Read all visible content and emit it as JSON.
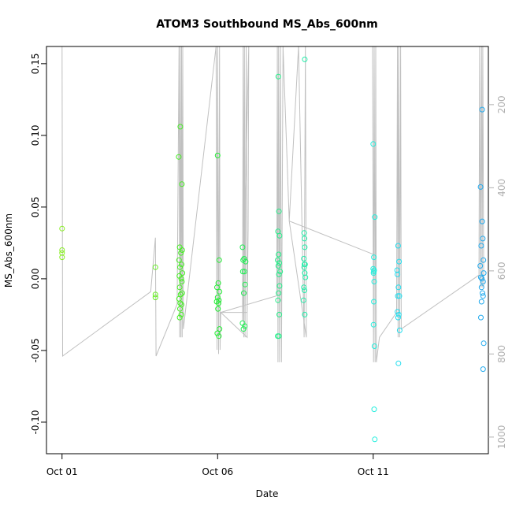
{
  "chart_data": {
    "type": "scatter",
    "title": "ATOM3 Southbound MS_Abs_600nm",
    "xlabel": "Date",
    "ylabel": "MS_Abs_600nm",
    "x_ticks": [
      "Oct 01",
      "Oct 06",
      "Oct 11"
    ],
    "x_tick_days": [
      1,
      6,
      11
    ],
    "xlim": [
      0.5,
      14.7
    ],
    "ylim": [
      -0.122,
      0.162
    ],
    "y_ticks": [
      -0.1,
      -0.05,
      0.0,
      0.05,
      0.1,
      0.15
    ],
    "y_tick_labels": [
      "-0.10",
      "-0.05",
      "0.00",
      "0.05",
      "0.10",
      "0.15"
    ],
    "right_axis": {
      "description": "depth (inverted)",
      "ticks": [
        200,
        400,
        600,
        800,
        1000
      ],
      "lim": [
        60,
        1040
      ],
      "color": "#b0b0b0"
    },
    "grid": false,
    "legend": "none",
    "line_color": "#c0c0c0",
    "points": [
      {
        "x": 1.0,
        "y": 0.035,
        "c": "#88ee22"
      },
      {
        "x": 1.0,
        "y": 0.02,
        "c": "#88ee22"
      },
      {
        "x": 1.0,
        "y": 0.018,
        "c": "#88ee22"
      },
      {
        "x": 1.0,
        "y": 0.015,
        "c": "#88ee22"
      },
      {
        "x": 4.0,
        "y": 0.008,
        "c": "#66ee22"
      },
      {
        "x": 4.0,
        "y": -0.011,
        "c": "#66ee22"
      },
      {
        "x": 4.0,
        "y": -0.013,
        "c": "#66ee22"
      },
      {
        "x": 4.75,
        "y": 0.085,
        "c": "#44ee22"
      },
      {
        "x": 4.8,
        "y": 0.106,
        "c": "#44ee22"
      },
      {
        "x": 4.85,
        "y": 0.066,
        "c": "#44ee22"
      },
      {
        "x": 4.78,
        "y": 0.022,
        "c": "#44ee22"
      },
      {
        "x": 4.82,
        "y": 0.018,
        "c": "#44ee22"
      },
      {
        "x": 4.86,
        "y": 0.02,
        "c": "#44ee22"
      },
      {
        "x": 4.76,
        "y": 0.013,
        "c": "#44ee22"
      },
      {
        "x": 4.84,
        "y": 0.01,
        "c": "#44ee22"
      },
      {
        "x": 4.79,
        "y": 0.008,
        "c": "#44ee22"
      },
      {
        "x": 4.87,
        "y": 0.004,
        "c": "#44ee22"
      },
      {
        "x": 4.77,
        "y": 0.002,
        "c": "#44ee22"
      },
      {
        "x": 4.83,
        "y": 0.0,
        "c": "#44ee22"
      },
      {
        "x": 4.85,
        "y": -0.002,
        "c": "#44ee22"
      },
      {
        "x": 4.78,
        "y": -0.006,
        "c": "#44ee22"
      },
      {
        "x": 4.86,
        "y": -0.01,
        "c": "#44ee22"
      },
      {
        "x": 4.81,
        "y": -0.011,
        "c": "#44ee22"
      },
      {
        "x": 4.76,
        "y": -0.014,
        "c": "#44ee22"
      },
      {
        "x": 4.8,
        "y": -0.017,
        "c": "#44ee22"
      },
      {
        "x": 4.84,
        "y": -0.018,
        "c": "#44ee22"
      },
      {
        "x": 4.79,
        "y": -0.021,
        "c": "#44ee22"
      },
      {
        "x": 4.83,
        "y": -0.025,
        "c": "#44ee22"
      },
      {
        "x": 4.78,
        "y": -0.027,
        "c": "#44ee22"
      },
      {
        "x": 6.0,
        "y": 0.086,
        "c": "#22ee33"
      },
      {
        "x": 6.05,
        "y": 0.013,
        "c": "#22ee33"
      },
      {
        "x": 6.02,
        "y": -0.003,
        "c": "#22ee33"
      },
      {
        "x": 5.98,
        "y": -0.006,
        "c": "#22ee33"
      },
      {
        "x": 6.06,
        "y": -0.009,
        "c": "#22ee33"
      },
      {
        "x": 6.0,
        "y": -0.013,
        "c": "#22ee33"
      },
      {
        "x": 6.04,
        "y": -0.015,
        "c": "#22ee33"
      },
      {
        "x": 5.97,
        "y": -0.016,
        "c": "#22ee33"
      },
      {
        "x": 6.03,
        "y": -0.017,
        "c": "#22ee33"
      },
      {
        "x": 6.01,
        "y": -0.021,
        "c": "#22ee33"
      },
      {
        "x": 6.06,
        "y": -0.035,
        "c": "#22ee33"
      },
      {
        "x": 5.99,
        "y": -0.038,
        "c": "#22ee33"
      },
      {
        "x": 6.04,
        "y": -0.04,
        "c": "#22ee33"
      },
      {
        "x": 6.8,
        "y": 0.022,
        "c": "#22ee55"
      },
      {
        "x": 6.85,
        "y": 0.014,
        "c": "#22ee55"
      },
      {
        "x": 6.9,
        "y": 0.012,
        "c": "#22ee55"
      },
      {
        "x": 6.82,
        "y": 0.013,
        "c": "#22ee55"
      },
      {
        "x": 6.86,
        "y": 0.005,
        "c": "#22ee55"
      },
      {
        "x": 6.81,
        "y": 0.005,
        "c": "#22ee55"
      },
      {
        "x": 6.88,
        "y": -0.004,
        "c": "#22ee55"
      },
      {
        "x": 6.84,
        "y": -0.01,
        "c": "#22ee55"
      },
      {
        "x": 6.8,
        "y": -0.031,
        "c": "#22ee55"
      },
      {
        "x": 6.83,
        "y": -0.035,
        "c": "#22ee55"
      },
      {
        "x": 6.87,
        "y": -0.033,
        "c": "#22ee55"
      },
      {
        "x": 7.95,
        "y": 0.141,
        "c": "#22ee88"
      },
      {
        "x": 7.97,
        "y": 0.047,
        "c": "#22ee88"
      },
      {
        "x": 7.94,
        "y": 0.033,
        "c": "#22ee88"
      },
      {
        "x": 7.99,
        "y": 0.03,
        "c": "#22ee88"
      },
      {
        "x": 7.96,
        "y": 0.017,
        "c": "#22ee88"
      },
      {
        "x": 7.93,
        "y": 0.013,
        "c": "#22ee88"
      },
      {
        "x": 7.98,
        "y": 0.011,
        "c": "#22ee88"
      },
      {
        "x": 7.95,
        "y": 0.009,
        "c": "#22ee88"
      },
      {
        "x": 8.01,
        "y": 0.005,
        "c": "#22ee88"
      },
      {
        "x": 7.97,
        "y": 0.003,
        "c": "#22ee88"
      },
      {
        "x": 7.99,
        "y": -0.005,
        "c": "#22ee88"
      },
      {
        "x": 7.96,
        "y": -0.01,
        "c": "#22ee88"
      },
      {
        "x": 7.94,
        "y": -0.015,
        "c": "#22ee88"
      },
      {
        "x": 7.98,
        "y": -0.025,
        "c": "#22ee88"
      },
      {
        "x": 7.93,
        "y": -0.04,
        "c": "#22ee88"
      },
      {
        "x": 7.97,
        "y": -0.04,
        "c": "#22ee88"
      },
      {
        "x": 8.8,
        "y": 0.153,
        "c": "#22eeaa"
      },
      {
        "x": 8.78,
        "y": 0.032,
        "c": "#22eeaa"
      },
      {
        "x": 8.79,
        "y": 0.028,
        "c": "#22eeaa"
      },
      {
        "x": 8.8,
        "y": 0.022,
        "c": "#22eeaa"
      },
      {
        "x": 8.77,
        "y": 0.014,
        "c": "#22eeaa"
      },
      {
        "x": 8.79,
        "y": 0.01,
        "c": "#22eeaa"
      },
      {
        "x": 8.81,
        "y": 0.01,
        "c": "#22eeaa"
      },
      {
        "x": 8.78,
        "y": 0.008,
        "c": "#22eeaa"
      },
      {
        "x": 8.8,
        "y": 0.004,
        "c": "#22eeaa"
      },
      {
        "x": 8.82,
        "y": 0.001,
        "c": "#22eeaa"
      },
      {
        "x": 8.77,
        "y": -0.006,
        "c": "#22eeaa"
      },
      {
        "x": 8.79,
        "y": -0.008,
        "c": "#22eeaa"
      },
      {
        "x": 8.76,
        "y": -0.015,
        "c": "#22eeaa"
      },
      {
        "x": 8.8,
        "y": -0.025,
        "c": "#22eeaa"
      },
      {
        "x": 11.0,
        "y": 0.094,
        "c": "#22eedd"
      },
      {
        "x": 11.05,
        "y": 0.043,
        "c": "#22eedd"
      },
      {
        "x": 11.02,
        "y": 0.015,
        "c": "#22eedd"
      },
      {
        "x": 11.0,
        "y": 0.007,
        "c": "#22eedd"
      },
      {
        "x": 11.03,
        "y": 0.006,
        "c": "#22eedd"
      },
      {
        "x": 11.01,
        "y": 0.004,
        "c": "#22eedd"
      },
      {
        "x": 11.02,
        "y": 0.005,
        "c": "#22eedd"
      },
      {
        "x": 11.03,
        "y": -0.002,
        "c": "#22eedd"
      },
      {
        "x": 11.02,
        "y": -0.016,
        "c": "#22eedd"
      },
      {
        "x": 11.01,
        "y": -0.032,
        "c": "#22eedd"
      },
      {
        "x": 11.04,
        "y": -0.047,
        "c": "#22eedd"
      },
      {
        "x": 11.03,
        "y": -0.091,
        "c": "#22eedd"
      },
      {
        "x": 11.05,
        "y": -0.112,
        "c": "#22eedd"
      },
      {
        "x": 11.8,
        "y": 0.023,
        "c": "#22ddee"
      },
      {
        "x": 11.83,
        "y": 0.012,
        "c": "#22ddee"
      },
      {
        "x": 11.77,
        "y": 0.006,
        "c": "#22ddee"
      },
      {
        "x": 11.78,
        "y": 0.003,
        "c": "#22ddee"
      },
      {
        "x": 11.81,
        "y": -0.006,
        "c": "#22ddee"
      },
      {
        "x": 11.79,
        "y": -0.012,
        "c": "#22ddee"
      },
      {
        "x": 11.84,
        "y": -0.012,
        "c": "#22ddee"
      },
      {
        "x": 11.78,
        "y": -0.023,
        "c": "#22ddee"
      },
      {
        "x": 11.82,
        "y": -0.025,
        "c": "#22ddee"
      },
      {
        "x": 11.8,
        "y": -0.027,
        "c": "#22ddee"
      },
      {
        "x": 11.85,
        "y": -0.036,
        "c": "#22ddee"
      },
      {
        "x": 11.81,
        "y": -0.059,
        "c": "#22ddee"
      },
      {
        "x": 14.5,
        "y": 0.118,
        "c": "#22aaee"
      },
      {
        "x": 14.45,
        "y": 0.064,
        "c": "#22aaee"
      },
      {
        "x": 14.5,
        "y": 0.04,
        "c": "#22aaee"
      },
      {
        "x": 14.52,
        "y": 0.028,
        "c": "#22aaee"
      },
      {
        "x": 14.47,
        "y": 0.023,
        "c": "#22aaee"
      },
      {
        "x": 14.54,
        "y": 0.013,
        "c": "#22aaee"
      },
      {
        "x": 14.44,
        "y": 0.009,
        "c": "#22aaee"
      },
      {
        "x": 14.55,
        "y": 0.004,
        "c": "#22aaee"
      },
      {
        "x": 14.46,
        "y": 0.001,
        "c": "#22aaee"
      },
      {
        "x": 14.49,
        "y": 0.0,
        "c": "#22aaee"
      },
      {
        "x": 14.53,
        "y": -0.002,
        "c": "#22aaee"
      },
      {
        "x": 14.48,
        "y": -0.006,
        "c": "#22aaee"
      },
      {
        "x": 14.51,
        "y": -0.01,
        "c": "#22aaee"
      },
      {
        "x": 14.53,
        "y": -0.012,
        "c": "#22aaee"
      },
      {
        "x": 14.48,
        "y": -0.016,
        "c": "#22aaee"
      },
      {
        "x": 14.46,
        "y": -0.027,
        "c": "#22aaee"
      },
      {
        "x": 14.55,
        "y": -0.045,
        "c": "#22aaee"
      },
      {
        "x": 14.53,
        "y": -0.063,
        "c": "#22aaee"
      }
    ],
    "depth_track": [
      [
        1.0,
        60
      ],
      [
        1.02,
        805
      ],
      [
        3.85,
        650
      ],
      [
        4.0,
        520
      ],
      [
        4.02,
        805
      ],
      [
        4.7,
        680
      ],
      [
        4.76,
        60
      ],
      [
        4.78,
        760
      ],
      [
        4.8,
        60
      ],
      [
        4.82,
        760
      ],
      [
        4.84,
        60
      ],
      [
        4.86,
        760
      ],
      [
        4.88,
        60
      ],
      [
        4.9,
        740
      ],
      [
        5.95,
        60
      ],
      [
        5.98,
        790
      ],
      [
        6.0,
        60
      ],
      [
        6.03,
        800
      ],
      [
        6.06,
        60
      ],
      [
        6.08,
        790
      ],
      [
        6.1,
        700
      ],
      [
        6.95,
        700
      ],
      [
        6.98,
        500
      ],
      [
        7.0,
        60
      ],
      [
        6.8,
        720
      ],
      [
        6.82,
        60
      ],
      [
        6.84,
        760
      ],
      [
        6.86,
        60
      ],
      [
        6.88,
        760
      ],
      [
        6.92,
        60
      ],
      [
        6.95,
        760
      ],
      [
        6.1,
        700
      ],
      [
        7.9,
        660
      ],
      [
        7.92,
        60
      ],
      [
        7.94,
        820
      ],
      [
        7.96,
        60
      ],
      [
        7.99,
        820
      ],
      [
        8.02,
        60
      ],
      [
        8.05,
        820
      ],
      [
        8.1,
        60
      ],
      [
        8.3,
        480
      ],
      [
        8.6,
        60
      ],
      [
        8.78,
        760
      ],
      [
        8.82,
        60
      ],
      [
        8.85,
        760
      ],
      [
        8.3,
        480
      ],
      [
        11.0,
        560
      ],
      [
        10.98,
        60
      ],
      [
        11.01,
        820
      ],
      [
        11.03,
        60
      ],
      [
        11.06,
        820
      ],
      [
        11.08,
        60
      ],
      [
        11.1,
        820
      ],
      [
        11.2,
        760
      ],
      [
        11.75,
        700
      ],
      [
        11.78,
        60
      ],
      [
        11.8,
        760
      ],
      [
        11.82,
        60
      ],
      [
        11.85,
        760
      ],
      [
        11.88,
        60
      ],
      [
        11.9,
        740
      ],
      [
        11.9,
        740
      ],
      [
        14.4,
        610
      ],
      [
        14.42,
        60
      ],
      [
        14.45,
        640
      ],
      [
        14.48,
        60
      ],
      [
        14.5,
        640
      ],
      [
        14.52,
        60
      ],
      [
        14.55,
        640
      ]
    ]
  }
}
